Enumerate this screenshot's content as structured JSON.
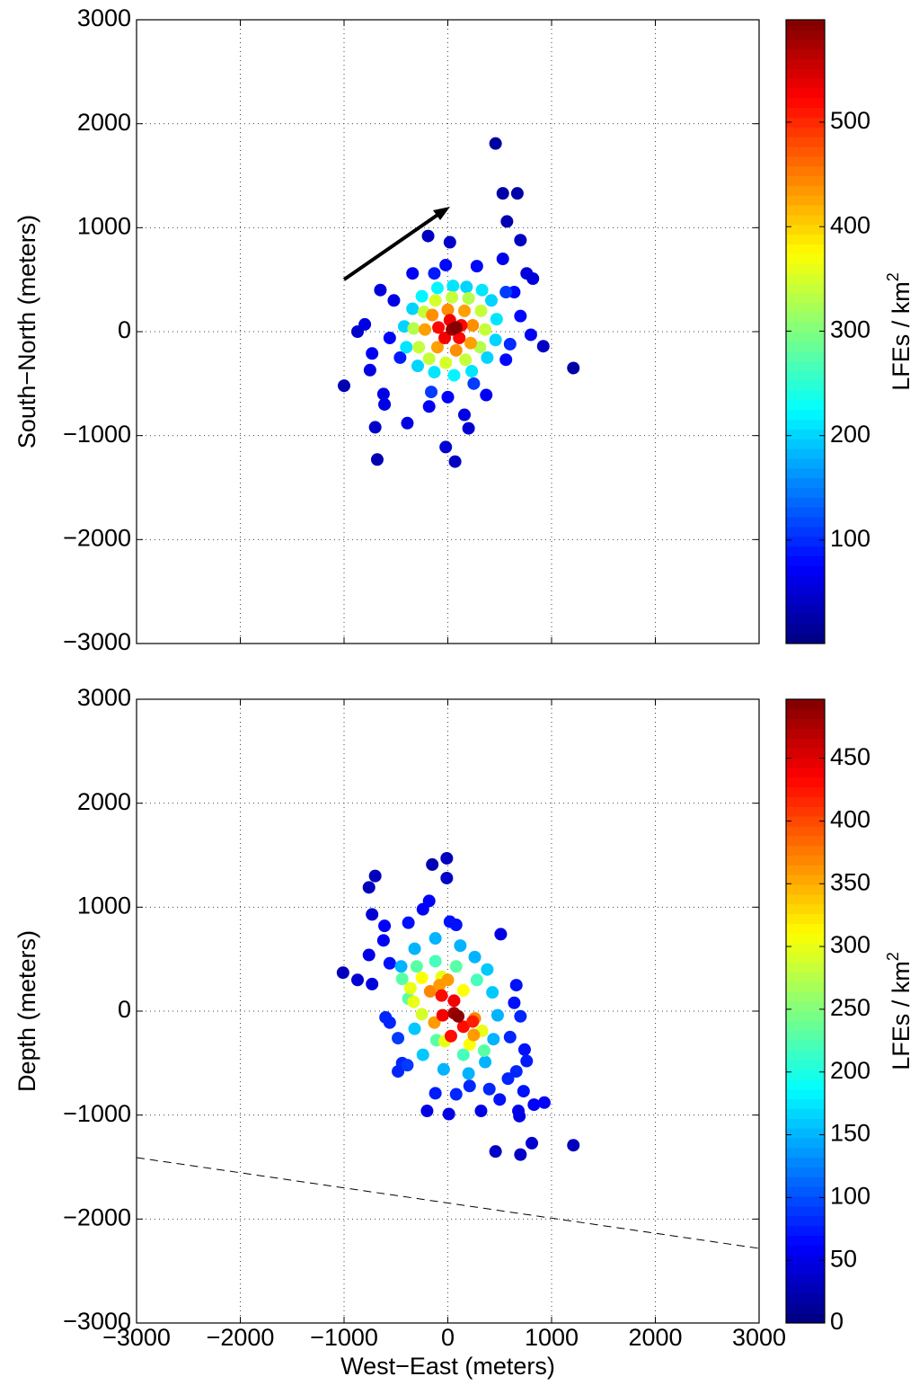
{
  "chart_data": [
    {
      "type": "scatter",
      "ylabel": "South−North (meters)",
      "xlim": [
        -3000,
        3000
      ],
      "ylim": [
        -3000,
        3000
      ],
      "xticks": [
        {
          "value": -3000,
          "label": "−3000"
        },
        {
          "value": -2000,
          "label": "−2000"
        },
        {
          "value": -1000,
          "label": "−1000"
        },
        0,
        1000,
        2000,
        3000
      ],
      "yticks": [
        {
          "value": -3000,
          "label": "−3000"
        },
        {
          "value": -2000,
          "label": "−2000"
        },
        {
          "value": -1000,
          "label": "−1000"
        },
        0,
        1000,
        2000,
        3000
      ],
      "show_xticklabels": false,
      "grid": true,
      "colormap": "jet",
      "clim": [
        1,
        598
      ],
      "cticks": [
        100,
        200,
        300,
        400,
        500
      ],
      "colorbar_label": "LFEs / km",
      "colorbar_label_exponent": "2",
      "x": [
        460,
        530,
        670,
        570,
        700,
        -190,
        20,
        -1000,
        -680,
        1210,
        920,
        -870,
        -750,
        -700,
        -20,
        70,
        -650,
        -520,
        -340,
        -20,
        280,
        530,
        760,
        820,
        640,
        700,
        800,
        560,
        -620,
        -610,
        -390,
        -180,
        0,
        160,
        200,
        370,
        -730,
        -800,
        -560,
        -460,
        -160,
        250,
        600,
        560,
        -130,
        -420,
        -400,
        -340,
        -250,
        -100,
        50,
        180,
        330,
        420,
        470,
        460,
        380,
        230,
        60,
        -130,
        -290,
        -330,
        -280,
        -230,
        -120,
        40,
        200,
        320,
        360,
        310,
        170,
        -20,
        -180,
        -220,
        -150,
        0,
        160,
        240,
        220,
        80,
        -100,
        -90,
        20,
        130,
        110,
        -30,
        40,
        80
      ],
      "y": [
        1810,
        1330,
        1330,
        1060,
        880,
        920,
        860,
        -520,
        -1230,
        -350,
        -140,
        0,
        -370,
        -920,
        -1110,
        -1250,
        400,
        300,
        560,
        640,
        630,
        700,
        560,
        510,
        380,
        150,
        -30,
        -270,
        -600,
        -700,
        -880,
        -720,
        -630,
        -800,
        -930,
        -610,
        -210,
        70,
        -60,
        -250,
        -580,
        -500,
        -120,
        380,
        560,
        50,
        -150,
        220,
        340,
        420,
        440,
        430,
        400,
        300,
        120,
        -80,
        -250,
        -380,
        -420,
        -390,
        -330,
        30,
        -150,
        190,
        300,
        330,
        320,
        200,
        20,
        -150,
        -270,
        -300,
        -260,
        20,
        160,
        210,
        200,
        60,
        -110,
        -180,
        -150,
        40,
        110,
        60,
        -60,
        -60,
        20,
        40
      ],
      "c": [
        20,
        25,
        25,
        30,
        40,
        40,
        45,
        30,
        30,
        25,
        40,
        45,
        60,
        45,
        50,
        40,
        55,
        60,
        70,
        80,
        80,
        65,
        55,
        55,
        80,
        80,
        70,
        80,
        60,
        60,
        60,
        70,
        75,
        60,
        50,
        70,
        70,
        60,
        75,
        90,
        110,
        110,
        100,
        110,
        90,
        200,
        210,
        200,
        220,
        220,
        210,
        200,
        210,
        200,
        210,
        200,
        200,
        210,
        220,
        210,
        200,
        330,
        340,
        340,
        350,
        340,
        330,
        340,
        340,
        330,
        340,
        350,
        340,
        430,
        440,
        440,
        430,
        440,
        430,
        440,
        430,
        520,
        530,
        520,
        520,
        530,
        580,
        595
      ]
    },
    {
      "type": "scatter",
      "ylabel": "Depth (meters)",
      "xlabel": "West−East (meters)",
      "xlim": [
        -3000,
        3000
      ],
      "ylim": [
        -3000,
        3000
      ],
      "xticks": [
        {
          "value": -3000,
          "label": "−3000"
        },
        {
          "value": -2000,
          "label": "−2000"
        },
        {
          "value": -1000,
          "label": "−1000"
        },
        0,
        1000,
        2000,
        3000
      ],
      "yticks": [
        {
          "value": -3000,
          "label": "−3000"
        },
        {
          "value": -2000,
          "label": "−2000"
        },
        {
          "value": -1000,
          "label": "−1000"
        },
        0,
        1000,
        2000,
        3000
      ],
      "show_xticklabels": true,
      "grid": true,
      "colormap": "jet",
      "clim": [
        0,
        497
      ],
      "cticks": [
        0,
        50,
        100,
        150,
        200,
        250,
        300,
        350,
        400,
        450
      ],
      "colorbar_label": "LFEs / km",
      "colorbar_label_exponent": "2",
      "x": [
        -10,
        -150,
        -10,
        -700,
        -760,
        -730,
        -1010,
        -870,
        -730,
        -760,
        -610,
        -620,
        -380,
        -240,
        -180,
        20,
        80,
        510,
        -560,
        660,
        640,
        700,
        600,
        740,
        760,
        660,
        580,
        730,
        830,
        930,
        680,
        690,
        810,
        1210,
        700,
        460,
        -200,
        10,
        320,
        210,
        80,
        -120,
        -480,
        -440,
        -560,
        -600,
        -480,
        -390,
        500,
        400,
        -450,
        -320,
        -120,
        120,
        260,
        380,
        430,
        480,
        440,
        360,
        200,
        -40,
        -240,
        -320,
        -440,
        -300,
        -120,
        80,
        280,
        350,
        150,
        -110,
        -380,
        -360,
        -250,
        -60,
        150,
        330,
        210,
        -30,
        -250,
        -330,
        -170,
        -80,
        260,
        250,
        -130,
        0,
        -60,
        60,
        150,
        30,
        -50,
        240,
        60,
        100
      ],
      "y": [
        1470,
        1410,
        1280,
        1300,
        1190,
        930,
        370,
        300,
        260,
        540,
        820,
        680,
        850,
        980,
        1060,
        860,
        830,
        740,
        460,
        250,
        80,
        -50,
        -250,
        -370,
        -480,
        -580,
        -650,
        -770,
        -900,
        -880,
        -960,
        -1010,
        -1270,
        -1290,
        -1380,
        -1350,
        -960,
        -990,
        -960,
        -720,
        -800,
        -790,
        -580,
        -500,
        -110,
        -60,
        -260,
        -520,
        -850,
        -750,
        430,
        600,
        700,
        630,
        520,
        400,
        180,
        -40,
        -270,
        -490,
        -600,
        -560,
        -420,
        -170,
        310,
        430,
        480,
        430,
        300,
        -380,
        -420,
        -280,
        120,
        220,
        320,
        330,
        200,
        -190,
        -320,
        -290,
        -30,
        90,
        190,
        250,
        -70,
        -230,
        -110,
        300,
        150,
        100,
        -150,
        -240,
        -40,
        -100,
        -20,
        -50
      ],
      "c": [
        30,
        25,
        35,
        30,
        30,
        40,
        30,
        40,
        45,
        50,
        60,
        60,
        70,
        60,
        60,
        70,
        70,
        50,
        70,
        70,
        70,
        80,
        80,
        70,
        75,
        80,
        80,
        70,
        60,
        60,
        55,
        50,
        40,
        30,
        35,
        35,
        50,
        50,
        50,
        80,
        80,
        75,
        80,
        80,
        80,
        80,
        90,
        90,
        70,
        80,
        150,
        150,
        150,
        150,
        150,
        160,
        160,
        150,
        150,
        150,
        150,
        150,
        160,
        160,
        230,
        230,
        220,
        230,
        220,
        230,
        220,
        230,
        230,
        300,
        310,
        300,
        310,
        300,
        310,
        300,
        290,
        300,
        370,
        360,
        370,
        360,
        360,
        360,
        430,
        440,
        430,
        430,
        440,
        420,
        480,
        490
      ]
    }
  ]
}
